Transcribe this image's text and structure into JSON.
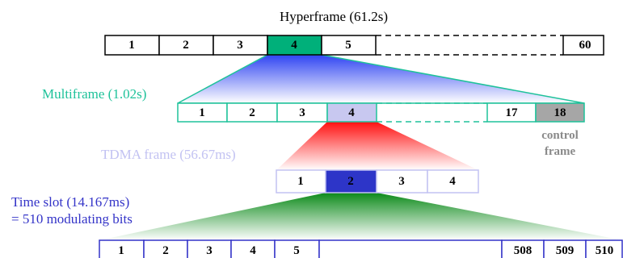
{
  "hyperframe": {
    "label": "Hyperframe (61.2s)",
    "cells": [
      "1",
      "2",
      "3",
      "4",
      "5",
      "60"
    ],
    "highlight_color": "#00b07a"
  },
  "multiframe": {
    "label": "Multiframe (1.02s)",
    "label_color": "#1fc29a",
    "cells": [
      "1",
      "2",
      "3",
      "4",
      "17",
      "18"
    ],
    "highlight_color": "#c8c8f0",
    "control_color": "#a6a6a6",
    "control_label_line1": "control",
    "control_label_line2": "frame"
  },
  "tdma_frame": {
    "label": "TDMA frame (56.67ms)",
    "label_color": "#c2c2f2",
    "cells": [
      "1",
      "2",
      "3",
      "4"
    ],
    "highlight_color": "#2d35c8"
  },
  "time_slot": {
    "label_line1": "Time slot (14.167ms)",
    "label_line2": "= 510 modulating bits",
    "label_color": "#3434c8",
    "cells": [
      "1",
      "2",
      "3",
      "4",
      "5",
      "508",
      "509",
      "510"
    ]
  },
  "colors": {
    "blue_fan": "#3a4ef0",
    "red_fan": "#ff1a1a",
    "green_fan": "#0f8a1e"
  }
}
